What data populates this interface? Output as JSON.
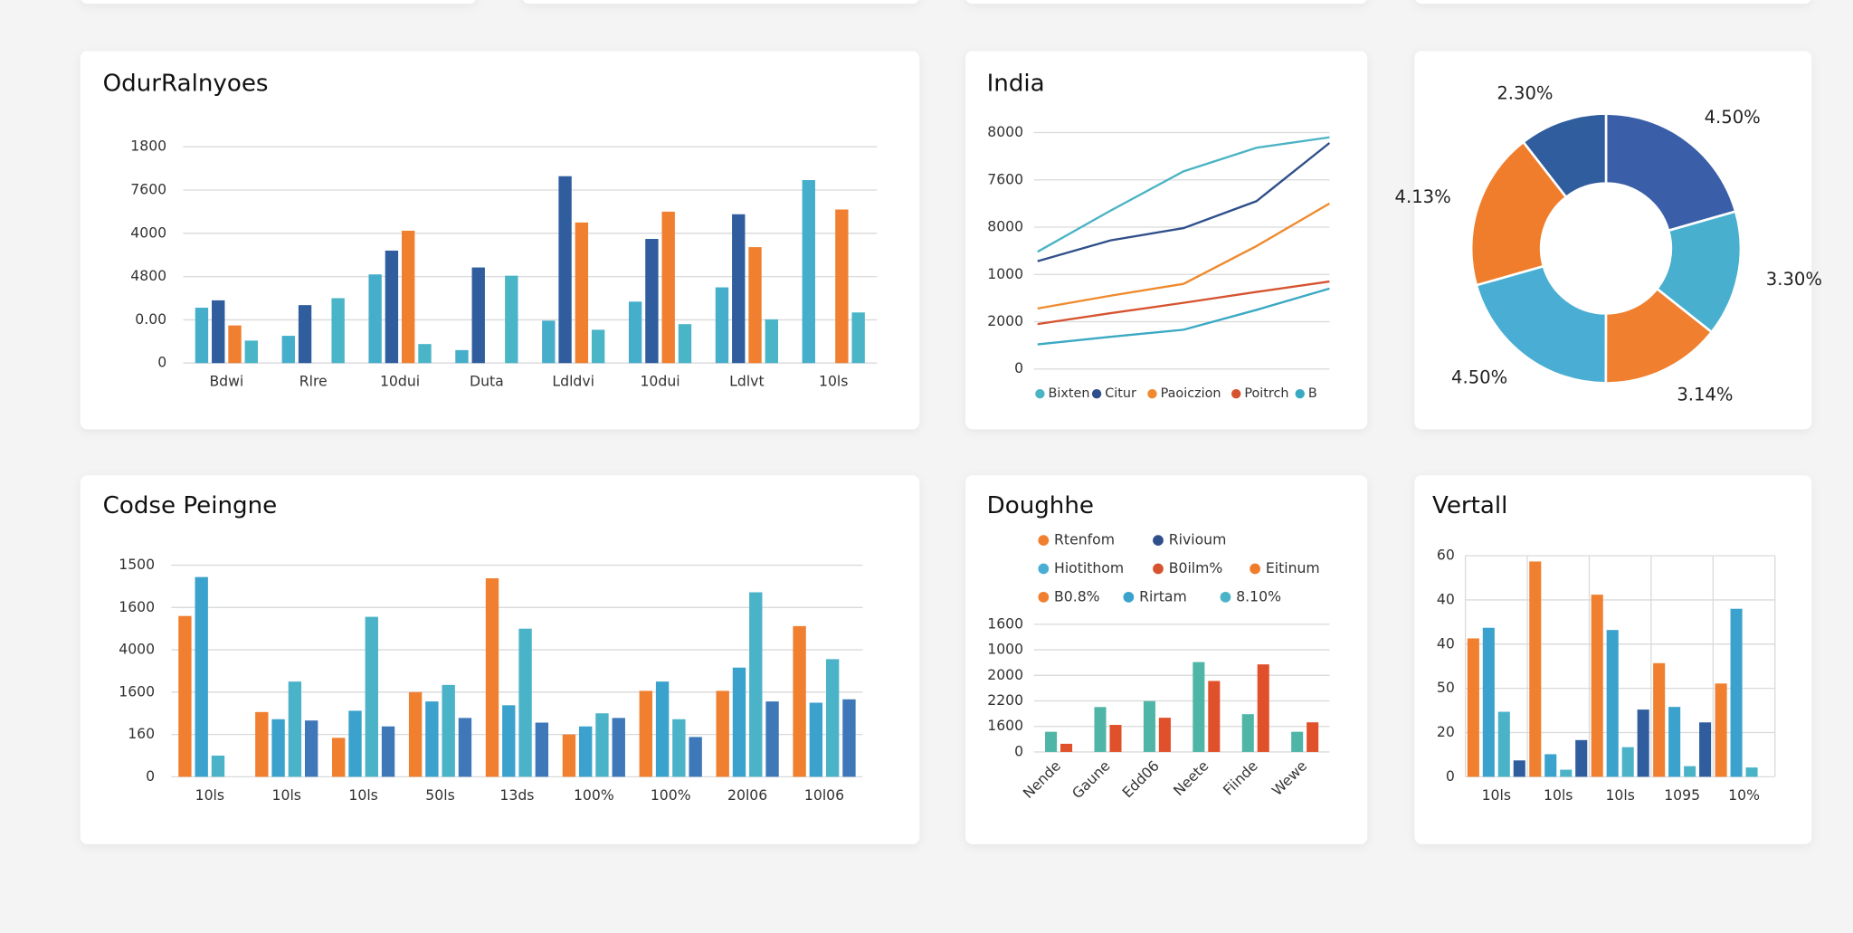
{
  "chart_data": [
    {
      "type": "bar",
      "title": "OdurRalnyoes",
      "categories": [
        "Bdwi",
        "Rlre",
        "10dui",
        "Duta",
        "Ldldvi",
        "10dui",
        "Ldlvt",
        "10ls"
      ],
      "series": [
        {
          "color": "#45aecb",
          "values": [
            1.28,
            0.63,
            2.05,
            0.3,
            0.98,
            1.42,
            1.75,
            4.23
          ]
        },
        {
          "color": "#2f5d9e",
          "values": [
            1.45,
            1.34,
            2.6,
            2.21,
            4.32,
            2.87,
            3.44,
            null
          ]
        },
        {
          "color": "#f07f2f",
          "values": [
            0.87,
            null,
            3.06,
            null,
            3.25,
            3.5,
            2.68,
            3.55
          ]
        },
        {
          "color": "#49b5c6",
          "values": [
            0.52,
            1.5,
            0.44,
            2.02,
            0.77,
            0.9,
            1.01,
            1.17
          ]
        }
      ],
      "ylim": [
        0,
        5
      ],
      "yticks": [
        0,
        {
          "value": 1,
          "label": "0.00"
        },
        {
          "value": 2,
          "label": "4800"
        },
        {
          "value": 3,
          "label": "4000"
        },
        {
          "value": 4,
          "label": "7600"
        },
        {
          "value": 5,
          "label": "1800"
        }
      ],
      "grid": true
    },
    {
      "type": "line",
      "title": "India",
      "categories": [
        null,
        null,
        null,
        null,
        null
      ],
      "series": [
        {
          "name": "Bixten",
          "color": "#4ab3c4",
          "values": [
            2.48,
            3.35,
            4.18,
            4.68,
            4.9
          ]
        },
        {
          "name": "Citur",
          "color": "#2f4f8a",
          "values": [
            2.28,
            2.72,
            2.98,
            3.55,
            4.78
          ]
        },
        {
          "name": "Paoiczion",
          "color": "#ef8a2e",
          "values": [
            1.28,
            1.55,
            1.8,
            2.6,
            3.5
          ]
        },
        {
          "name": "Poitrch",
          "color": "#d65330",
          "values": [
            0.95,
            1.18,
            1.4,
            1.63,
            1.85
          ]
        },
        {
          "name": "B",
          "color": "#3aa9c2",
          "values": [
            0.52,
            0.68,
            0.83,
            1.25,
            1.7
          ]
        }
      ],
      "ylim": [
        0,
        5
      ],
      "yticks": [
        0,
        {
          "value": 1,
          "label": "2000"
        },
        {
          "value": 2,
          "label": "1000"
        },
        {
          "value": 3,
          "label": "8000"
        },
        {
          "value": 4,
          "label": "7600"
        },
        {
          "value": 5,
          "label": "8000"
        }
      ],
      "grid": true
    },
    {
      "type": "donut",
      "categories": [
        null,
        null,
        null,
        null,
        null,
        null
      ],
      "values": [
        4.5,
        3.3,
        3.14,
        4.5,
        4.13,
        2.3
      ],
      "value_labels": [
        "4.50%",
        "3.30%",
        "3.14%",
        "4.50%",
        "4.13%",
        "2.30%"
      ],
      "colors": [
        "#3a5ea8",
        "#49afcf",
        "#f07f2f",
        "#4aaed4",
        "#ef7d2c",
        "#2f5d9e"
      ]
    },
    {
      "type": "bar",
      "title": "Codse Peingne",
      "categories": [
        "10ls",
        "10ls",
        "10ls",
        "50ls",
        "13ds",
        "100%",
        "100%",
        "20l06",
        "10l06"
      ],
      "series": [
        {
          "color": "#f07f2f",
          "values": [
            3.8,
            1.53,
            0.92,
            2.0,
            4.69,
            1.0,
            2.03,
            2.03,
            3.56
          ]
        },
        {
          "color": "#3aa2cc",
          "values": [
            4.72,
            1.36,
            1.56,
            1.78,
            1.69,
            1.19,
            2.25,
            2.58,
            1.75
          ]
        },
        {
          "color": "#4bb3c8",
          "values": [
            0.5,
            2.25,
            3.78,
            2.17,
            3.5,
            1.5,
            1.36,
            4.36,
            2.78
          ]
        },
        {
          "color": "#3e78b8",
          "values": [
            null,
            1.33,
            1.19,
            1.39,
            1.28,
            1.39,
            0.94,
            1.78,
            1.83
          ]
        }
      ],
      "ylim": [
        0,
        5
      ],
      "yticks": [
        0,
        {
          "value": 1,
          "label": "160"
        },
        {
          "value": 2,
          "label": "1600"
        },
        {
          "value": 3,
          "label": "4000"
        },
        {
          "value": 4,
          "label": "1600"
        },
        {
          "value": 5,
          "label": "1500"
        }
      ],
      "grid": true
    },
    {
      "type": "bar",
      "title": "Doughhe",
      "legend": [
        {
          "name": "Rtenfom",
          "color": "#f07f2f"
        },
        {
          "name": "Rivioum",
          "color": "#2f4f8a"
        },
        {
          "name": "Hiotithom",
          "color": "#4aaed4"
        },
        {
          "name": "B0ilm%",
          "color": "#d65330"
        },
        {
          "name": "Eitinum",
          "color": "#ef7d2c"
        },
        {
          "name": "B0.8%",
          "color": "#f07f2f"
        },
        {
          "name": "Rirtam",
          "color": "#3aa2cc"
        },
        {
          "name": "8.10%",
          "color": "#4bb3c8"
        }
      ],
      "categories": [
        "Nende",
        "Gaune",
        "Edd06",
        "Neete",
        "Fiinde",
        "Wewe"
      ],
      "series": [
        {
          "color": "#4fb5a6",
          "values": [
            0.79,
            1.76,
            1.99,
            3.52,
            1.48,
            0.79
          ]
        },
        {
          "color": "#e0502a",
          "values": [
            0.32,
            1.06,
            1.34,
            2.78,
            3.43,
            1.16
          ]
        }
      ],
      "ylim": [
        0,
        5
      ],
      "yticks": [
        0,
        {
          "value": 1,
          "label": "1600"
        },
        {
          "value": 2,
          "label": "2200"
        },
        {
          "value": 3,
          "label": "2000"
        },
        {
          "value": 4,
          "label": "1000"
        },
        {
          "value": 5,
          "label": "1600"
        }
      ],
      "grid": true
    },
    {
      "type": "bar",
      "title": "Vertall",
      "categories": [
        "10ls",
        "10ls",
        "10ls",
        "1095",
        "10%"
      ],
      "series": [
        {
          "color": "#f07f2f",
          "values": [
            3.13,
            4.87,
            4.12,
            2.57,
            2.11
          ]
        },
        {
          "color": "#3aa2cc",
          "values": [
            3.37,
            0.51,
            3.32,
            1.58,
            3.8
          ]
        },
        {
          "color": "#4bb3c8",
          "values": [
            1.47,
            0.16,
            0.67,
            0.24,
            0.21
          ]
        },
        {
          "color": "#2f5d9e",
          "values": [
            0.37,
            0.83,
            1.52,
            1.23,
            null
          ]
        }
      ],
      "ylim": [
        0,
        5
      ],
      "yticks": [
        0,
        {
          "value": 1,
          "label": "20"
        },
        {
          "value": 2,
          "label": "50"
        },
        {
          "value": 3,
          "label": "40"
        },
        {
          "value": 4,
          "label": "40"
        },
        {
          "value": 5,
          "label": "60"
        }
      ],
      "grid": "both"
    }
  ]
}
